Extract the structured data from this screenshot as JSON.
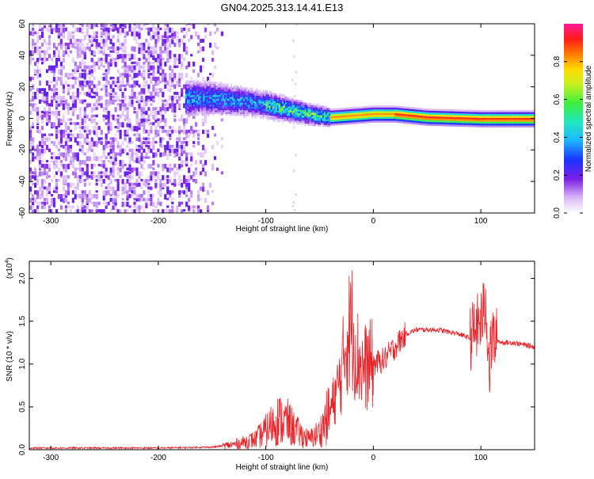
{
  "title": "GN04.2025.313.14.41.E13",
  "colors": {
    "snr_line": "#e8242a",
    "background": "#ffffff",
    "axis": "#000000"
  },
  "chart_data": [
    {
      "type": "heatmap",
      "xlabel": "Height of straight line (km)",
      "ylabel": "Frequency (Hz)",
      "xlim": [
        -320,
        150
      ],
      "ylim": [
        -60,
        60
      ],
      "x_ticks": [
        "-300",
        "-200",
        "-100",
        "0",
        "100"
      ],
      "x_tick_values": [
        -300,
        -200,
        -100,
        0,
        100
      ],
      "y_ticks": [
        "60",
        "40",
        "20",
        "0",
        "-20",
        "-40",
        "-60"
      ],
      "y_tick_values": [
        60,
        40,
        20,
        0,
        -20,
        -40,
        -60
      ],
      "colorbar": {
        "label": "Normalized spectral amplitude",
        "range": [
          0,
          1
        ],
        "ticks": [
          "0.0",
          "0.2",
          "0.4",
          "0.6",
          "0.8"
        ],
        "tick_values": [
          0.0,
          0.2,
          0.4,
          0.6,
          0.8
        ],
        "colormap": "rainbow-white-magenta"
      },
      "ridge": [
        {
          "x": -170,
          "y": 12
        },
        {
          "x": -150,
          "y": 12
        },
        {
          "x": -120,
          "y": 10
        },
        {
          "x": -100,
          "y": 8
        },
        {
          "x": -80,
          "y": 5
        },
        {
          "x": -60,
          "y": 2
        },
        {
          "x": -40,
          "y": 0
        },
        {
          "x": -20,
          "y": 1
        },
        {
          "x": 0,
          "y": 2
        },
        {
          "x": 20,
          "y": 2
        },
        {
          "x": 50,
          "y": 0
        },
        {
          "x": 100,
          "y": -1
        },
        {
          "x": 150,
          "y": -1
        }
      ]
    },
    {
      "type": "line",
      "xlabel": "Height of straight line (km)",
      "ylabel": "SNR (10 * v/v)",
      "y_multiplier": "(x10",
      "y_multiplier_exp": "4",
      "y_multiplier_close": ")",
      "xlim": [
        -320,
        150
      ],
      "ylim": [
        0,
        2.2
      ],
      "x_ticks": [
        "-300",
        "-200",
        "-100",
        "0",
        "100"
      ],
      "x_tick_values": [
        -300,
        -200,
        -100,
        0,
        100
      ],
      "y_ticks": [
        "2.0",
        "1.5",
        "1.0",
        "0.5",
        "0.0"
      ],
      "y_tick_values": [
        2.0,
        1.5,
        1.0,
        0.5,
        0.0
      ],
      "series": [
        {
          "x": [
            -320,
            -250,
            -200,
            -150,
            -130,
            -110,
            -100,
            -90,
            -80,
            -70,
            -60,
            -50,
            -40,
            -30,
            -25,
            -20,
            -15,
            -10,
            0,
            10,
            20,
            30,
            40,
            60,
            80,
            90,
            100,
            105,
            108,
            110,
            120,
            130,
            150
          ],
          "y": [
            0.02,
            0.02,
            0.02,
            0.03,
            0.06,
            0.12,
            0.22,
            0.35,
            0.32,
            0.2,
            0.12,
            0.2,
            0.45,
            0.85,
            1.3,
            1.45,
            1.1,
            0.95,
            1.0,
            1.05,
            1.2,
            1.35,
            1.4,
            1.4,
            1.35,
            1.3,
            1.5,
            1.7,
            0.9,
            1.3,
            1.25,
            1.25,
            1.2
          ]
        }
      ]
    }
  ]
}
